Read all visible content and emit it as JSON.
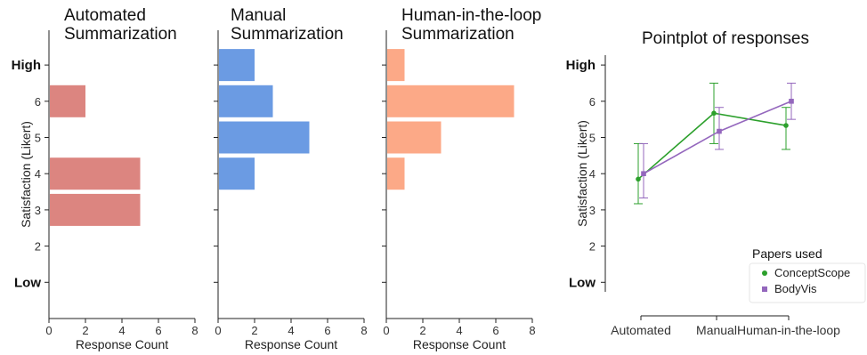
{
  "chart_data": [
    {
      "type": "bar",
      "orientation": "horizontal",
      "title": "Automated\nSummarization",
      "xlabel": "Response Count",
      "ylabel": "Satisfaction (Likert)",
      "categories": [
        "Low",
        "2",
        "3",
        "4",
        "5",
        "6",
        "High"
      ],
      "values": [
        0,
        0,
        5,
        5,
        0,
        2,
        0
      ],
      "xlim": [
        0,
        8
      ],
      "xticks": [
        "0",
        "2",
        "4",
        "6",
        "8"
      ],
      "color": "#dc8580"
    },
    {
      "type": "bar",
      "orientation": "horizontal",
      "title": "Manual\nSummarization",
      "xlabel": "Response Count",
      "categories": [
        "Low",
        "2",
        "3",
        "4",
        "5",
        "6",
        "High"
      ],
      "values": [
        0,
        0,
        0,
        2,
        5,
        3,
        2
      ],
      "xlim": [
        0,
        8
      ],
      "xticks": [
        "0",
        "2",
        "4",
        "6",
        "8"
      ],
      "color": "#6b9be3"
    },
    {
      "type": "bar",
      "orientation": "horizontal",
      "title": "Human-in-the-loop\nSummarization",
      "xlabel": "Response Count",
      "categories": [
        "Low",
        "2",
        "3",
        "4",
        "5",
        "6",
        "High"
      ],
      "values": [
        0,
        0,
        0,
        1,
        3,
        7,
        1
      ],
      "xlim": [
        0,
        8
      ],
      "xticks": [
        "0",
        "2",
        "4",
        "6",
        "8"
      ],
      "color": "#fca987"
    },
    {
      "type": "line",
      "subtype": "pointplot",
      "title": "Pointplot of responses",
      "ylabel": "Satisfaction (Likert)",
      "categories": [
        "Automated",
        "Manual",
        "Human-in-the-loop"
      ],
      "yticks": [
        "Low",
        "2",
        "3",
        "4",
        "5",
        "6",
        "High"
      ],
      "ylim": [
        1,
        7
      ],
      "legend": {
        "title": "Papers used",
        "placement": "bottom-right"
      },
      "series": [
        {
          "name": "ConceptScope",
          "color": "#2ca02c",
          "marker": "circle",
          "values": [
            3.85,
            5.67,
            5.33
          ],
          "err_low": [
            3.17,
            4.83,
            4.67
          ],
          "err_high": [
            4.83,
            6.5,
            5.83
          ]
        },
        {
          "name": "BodyVis",
          "color": "#9467bd",
          "marker": "square",
          "values": [
            4.0,
            5.17,
            6.0
          ],
          "err_low": [
            3.33,
            4.67,
            5.5
          ],
          "err_high": [
            4.83,
            5.83,
            6.5
          ]
        }
      ]
    }
  ]
}
